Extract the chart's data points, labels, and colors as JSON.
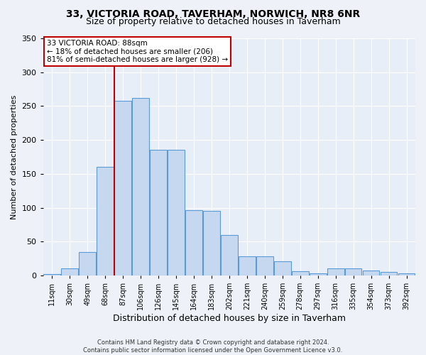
{
  "title": "33, VICTORIA ROAD, TAVERHAM, NORWICH, NR8 6NR",
  "subtitle": "Size of property relative to detached houses in Taverham",
  "xlabel": "Distribution of detached houses by size in Taverham",
  "ylabel": "Number of detached properties",
  "categories": [
    "11sqm",
    "30sqm",
    "49sqm",
    "68sqm",
    "87sqm",
    "106sqm",
    "126sqm",
    "145sqm",
    "164sqm",
    "183sqm",
    "202sqm",
    "221sqm",
    "240sqm",
    "259sqm",
    "278sqm",
    "297sqm",
    "316sqm",
    "335sqm",
    "354sqm",
    "373sqm",
    "392sqm"
  ],
  "values": [
    2,
    10,
    35,
    160,
    258,
    262,
    185,
    185,
    96,
    95,
    60,
    28,
    28,
    21,
    6,
    3,
    10,
    10,
    7,
    5,
    3
  ],
  "bar_color": "#c5d8f0",
  "bar_edge_color": "#5b9bd5",
  "vline_color": "#c00000",
  "annotation_line1": "33 VICTORIA ROAD: 88sqm",
  "annotation_line2": "← 18% of detached houses are smaller (206)",
  "annotation_line3": "81% of semi-detached houses are larger (928) →",
  "annotation_box_color": "#ffffff",
  "annotation_box_edge_color": "#c00000",
  "footer1": "Contains HM Land Registry data © Crown copyright and database right 2024.",
  "footer2": "Contains public sector information licensed under the Open Government Licence v3.0.",
  "bg_color": "#eef2f8",
  "plot_bg_color": "#e8eef8",
  "ylim": [
    0,
    350
  ],
  "yticks": [
    0,
    50,
    100,
    150,
    200,
    250,
    300,
    350
  ],
  "vline_bin_index": 4,
  "title_fontsize": 10,
  "subtitle_fontsize": 9,
  "ylabel_fontsize": 8,
  "xlabel_fontsize": 9,
  "tick_fontsize": 7,
  "footer_fontsize": 6
}
